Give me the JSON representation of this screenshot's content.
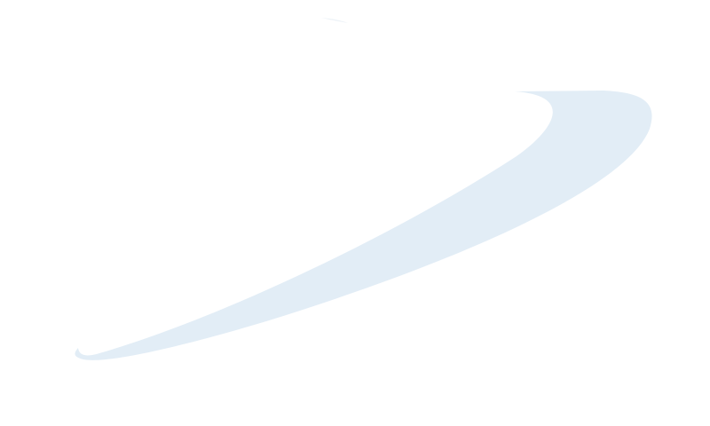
{
  "screen": {
    "background_color": "#ffffff",
    "graphic": {
      "icon": "swoosh-logo-graphic",
      "fill_color": "#e2edf6",
      "faint_streak_color": "#eef3f8"
    }
  }
}
